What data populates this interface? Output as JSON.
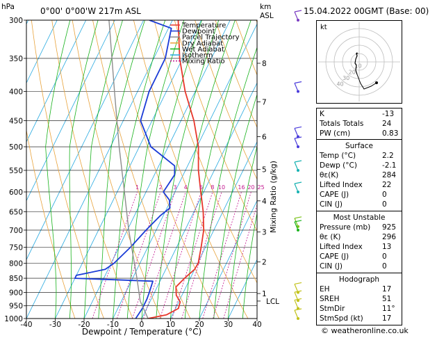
{
  "header": {
    "hpa_label": "hPa",
    "location": "0°00' 0°00'W 217m ASL",
    "km_label": "km",
    "asl_label": "ASL",
    "datetime": "15.04.2022 00GMT (Base: 00)"
  },
  "legend": [
    {
      "label": "Temperature",
      "color": "#e8352a"
    },
    {
      "label": "Dewpoint",
      "color": "#1a3bd6"
    },
    {
      "label": "Parcel Trajectory",
      "color": "#8c8c8c"
    },
    {
      "label": "Dry Adiabat",
      "color": "#e8a23a"
    },
    {
      "label": "Wet Adiabat",
      "color": "#17b21b"
    },
    {
      "label": "Isotherm",
      "color": "#24a8e0"
    },
    {
      "label": "Mixing Ratio",
      "color": "#c2138e"
    }
  ],
  "colors": {
    "temperature": "#e8352a",
    "dewpoint": "#1a3bd6",
    "parcel": "#8c8c8c",
    "dry_adiabat": "#e8a23a",
    "wet_adiabat": "#17b21b",
    "isotherm": "#24a8e0",
    "mixing_ratio": "#c2138e",
    "wind_barb": "#4a3cdb"
  },
  "chart_data": {
    "type": "line",
    "xlabel": "Dewpoint / Temperature (°C)",
    "ylabel": "Mixing Ratio (g/kg)",
    "pressure_ticks": [
      300,
      350,
      400,
      450,
      500,
      550,
      600,
      650,
      700,
      750,
      800,
      850,
      900,
      950,
      1000
    ],
    "temperature_ticks": [
      -40,
      -30,
      -20,
      -10,
      0,
      10,
      20,
      30,
      40
    ],
    "xlim": [
      -40,
      40
    ],
    "ylim": [
      1000,
      300
    ],
    "height_ticks_km": [
      {
        "label": "8",
        "p": 357
      },
      {
        "label": "7",
        "p": 417
      },
      {
        "label": "6",
        "p": 480
      },
      {
        "label": "5",
        "p": 548
      },
      {
        "label": "4",
        "p": 622
      },
      {
        "label": "3",
        "p": 705
      },
      {
        "label": "2",
        "p": 796
      },
      {
        "label": "1",
        "p": 904
      },
      {
        "label": "LCL",
        "p": 932
      }
    ],
    "mixing_ratio_labels": [
      "1",
      "2",
      "3",
      "4",
      "6",
      "8",
      "10",
      "16",
      "20",
      "25"
    ],
    "series": [
      {
        "name": "Temperature",
        "points": [
          [
            1000,
            2.2
          ],
          [
            985,
            8.0
          ],
          [
            960,
            11.0
          ],
          [
            935,
            10.5
          ],
          [
            910,
            8.0
          ],
          [
            880,
            6.5
          ],
          [
            850,
            8.0
          ],
          [
            820,
            10.0
          ],
          [
            800,
            10.2
          ],
          [
            750,
            8.5
          ],
          [
            700,
            6.5
          ],
          [
            650,
            3.2
          ],
          [
            600,
            -1.0
          ],
          [
            550,
            -5.5
          ],
          [
            500,
            -9.5
          ],
          [
            450,
            -15.5
          ],
          [
            400,
            -23.5
          ],
          [
            350,
            -31.0
          ],
          [
            300,
            -38.0
          ]
        ]
      },
      {
        "name": "Dewpoint",
        "points": [
          [
            1000,
            -2.1
          ],
          [
            960,
            -1.5
          ],
          [
            925,
            -1.5
          ],
          [
            900,
            -1.8
          ],
          [
            860,
            -2.5
          ],
          [
            850,
            -30.0
          ],
          [
            840,
            -30.0
          ],
          [
            820,
            -21.0
          ],
          [
            800,
            -19.0
          ],
          [
            750,
            -16.0
          ],
          [
            700,
            -13.5
          ],
          [
            660,
            -11.0
          ],
          [
            640,
            -9.0
          ],
          [
            620,
            -10.5
          ],
          [
            600,
            -14.0
          ],
          [
            560,
            -13.0
          ],
          [
            540,
            -14.5
          ],
          [
            500,
            -26.0
          ],
          [
            450,
            -34.0
          ],
          [
            400,
            -36.0
          ],
          [
            350,
            -36.0
          ],
          [
            310,
            -39.0
          ],
          [
            300,
            -48.0
          ]
        ]
      },
      {
        "name": "Parcel Trajectory",
        "points": [
          [
            1000,
            2.2
          ],
          [
            932,
            -3.5
          ],
          [
            850,
            -8.5
          ],
          [
            700,
            -19.5
          ],
          [
            600,
            -27.5
          ],
          [
            500,
            -37.0
          ],
          [
            400,
            -48.0
          ],
          [
            300,
            -62.0
          ]
        ]
      }
    ]
  },
  "hodograph": {
    "label": "kt",
    "ring_labels": [
      "40",
      "30",
      "20",
      "10"
    ]
  },
  "indices": {
    "basic": [
      {
        "label": "K",
        "value": "-13"
      },
      {
        "label": "Totals Totals",
        "value": "24"
      },
      {
        "label": "PW (cm)",
        "value": "0.83"
      }
    ],
    "surface_title": "Surface",
    "surface": [
      {
        "label": "Temp (°C)",
        "value": "2.2"
      },
      {
        "label": "Dewp (°C)",
        "value": "-2.1"
      },
      {
        "label": "θε(K)",
        "value": "284"
      },
      {
        "label": "Lifted Index",
        "value": "22"
      },
      {
        "label": "CAPE (J)",
        "value": "0"
      },
      {
        "label": "CIN (J)",
        "value": "0"
      }
    ],
    "most_unstable_title": "Most Unstable",
    "most_unstable": [
      {
        "label": "Pressure (mb)",
        "value": "925"
      },
      {
        "label": "θε (K)",
        "value": "296"
      },
      {
        "label": "Lifted Index",
        "value": "13"
      },
      {
        "label": "CAPE (J)",
        "value": "0"
      },
      {
        "label": "CIN (J)",
        "value": "0"
      }
    ],
    "hodograph_title": "Hodograph",
    "hodograph": [
      {
        "label": "EH",
        "value": "17"
      },
      {
        "label": "SREH",
        "value": "51"
      },
      {
        "label": "StmDir",
        "value": "11°"
      },
      {
        "label": "StmSpd (kt)",
        "value": "17"
      }
    ]
  },
  "footer": "© weatheronline.co.uk"
}
